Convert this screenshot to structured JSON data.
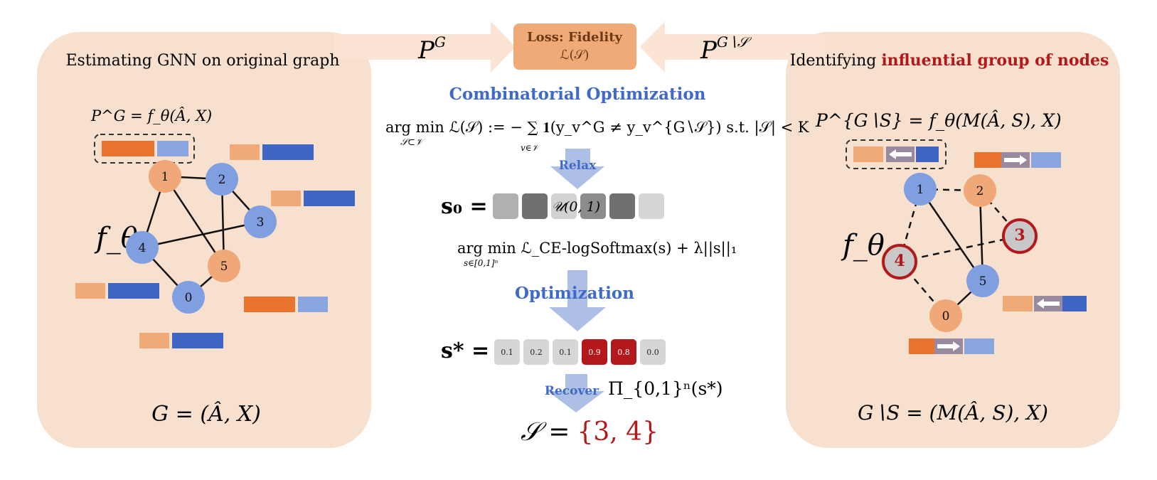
{
  "colors": {
    "panel": "#f8e0ce",
    "arrow_band": "#fbe4d4",
    "loss_box": "#f0aa78",
    "peach_node": "#f0a878",
    "blue_node": "#7f9fe0",
    "dark_orange": "#e8742e",
    "light_orange": "#f0aa78",
    "dark_blue": "#3f66c4",
    "light_blue": "#8aa6e0",
    "highlight_red": "#b3191a",
    "step_blue": "#3f6ac7",
    "flow_arrow": "#aebfe6",
    "gray_node": "#c8c8c8"
  },
  "left_panel": {
    "title": "Estimating GNN on original graph",
    "formula_top": "P^G = f_θ(Â, X)",
    "f_theta": "f_θ",
    "graph_caption": "G = (Â, X)",
    "nodes": [
      {
        "id": "1",
        "color": "peach"
      },
      {
        "id": "2",
        "color": "blue"
      },
      {
        "id": "3",
        "color": "blue"
      },
      {
        "id": "4",
        "color": "blue"
      },
      {
        "id": "5",
        "color": "peach"
      },
      {
        "id": "0",
        "color": "blue"
      }
    ],
    "edges": [
      [
        "1",
        "2"
      ],
      [
        "1",
        "4"
      ],
      [
        "1",
        "5"
      ],
      [
        "2",
        "3"
      ],
      [
        "2",
        "5"
      ],
      [
        "4",
        "3"
      ],
      [
        "4",
        "0"
      ],
      [
        "5",
        "0"
      ]
    ]
  },
  "right_panel": {
    "title_prefix": "Identifying ",
    "title_highlight": "influential group of nodes",
    "formula_top": "P^{G∖S} = f_θ(M(Â, S), X)",
    "f_theta": "f_θ",
    "graph_caption": "G∖S = (M(Â, S), X)",
    "nodes": [
      {
        "id": "1",
        "color": "blue"
      },
      {
        "id": "2",
        "color": "peach"
      },
      {
        "id": "3",
        "color": "removed"
      },
      {
        "id": "4",
        "color": "removed"
      },
      {
        "id": "5",
        "color": "blue"
      },
      {
        "id": "0",
        "color": "peach"
      }
    ],
    "solid_edges": [
      [
        "1",
        "5"
      ],
      [
        "2",
        "5"
      ],
      [
        "5",
        "0"
      ]
    ],
    "dashed_edges": [
      [
        "1",
        "2"
      ],
      [
        "1",
        "4"
      ],
      [
        "2",
        "3"
      ],
      [
        "4",
        "3"
      ],
      [
        "4",
        "0"
      ]
    ]
  },
  "top": {
    "loss_line1": "Loss: Fidelity",
    "loss_line2": "ℒ(𝒮)",
    "left_arrow_label": "P",
    "left_arrow_sup": "G",
    "right_arrow_label": "P",
    "right_arrow_sup": "G∖𝒮"
  },
  "middle": {
    "heading": "Combinatorial Optimization",
    "objective": "arg min ℒ(𝒮) := − ∑ 𝟏(y_v^G ≠ y_v^{G∖𝒮})   s.t. |𝒮| < K",
    "objective_sub": "𝒮⊂𝒱",
    "objective_sum_sub": "v∈𝒱",
    "relax_label": "Relax",
    "s0_label": "s₀ =",
    "s0_overlay": "𝒰(0, 1)",
    "s0_cells": [
      "#b0b0b0",
      "#707070",
      "#d2d2d2",
      "#8c8c8c",
      "#707070",
      "#d6d6d6"
    ],
    "relaxed_objective": "arg min ℒ_CE-logSoftmax(s) + λ||s||₁",
    "relaxed_sub": "s∈[0,1]ⁿ",
    "optimization_label": "Optimization",
    "sstar_label": "s* =",
    "sstar_values": [
      "0.1",
      "0.2",
      "0.1",
      "0.9",
      "0.8",
      "0.0"
    ],
    "sstar_selected": [
      false,
      false,
      false,
      true,
      true,
      false
    ],
    "recover_label": "Recover",
    "projection": "Π_{0,1}ⁿ(s*)",
    "result_prefix": "𝒮 =",
    "result_set": "{3, 4}"
  }
}
